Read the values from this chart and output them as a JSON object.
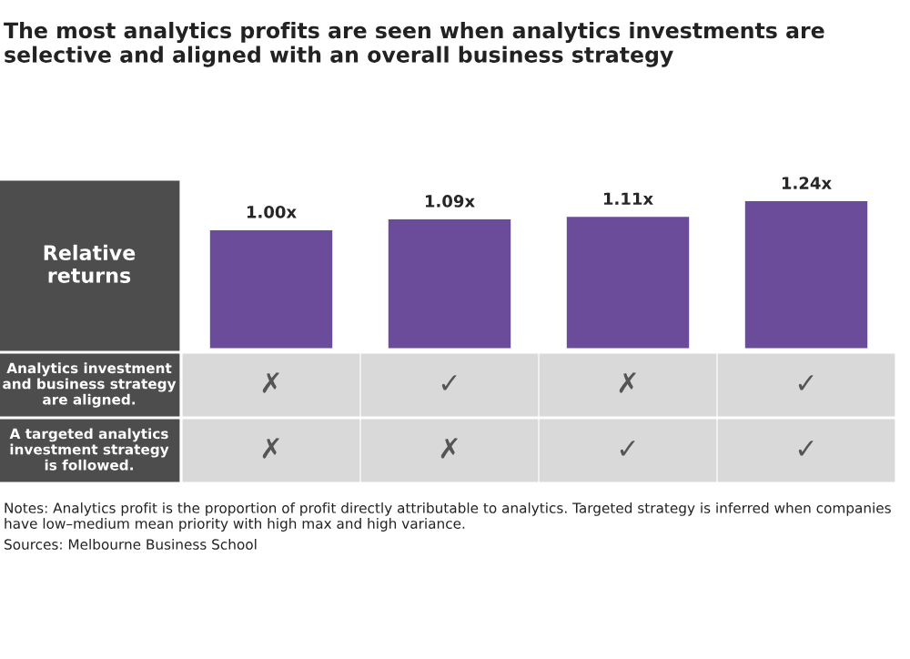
{
  "chart_data": {
    "type": "bar",
    "title": "The most analytics profits are seen when analytics investments are selective and aligned with an overall business strategy",
    "ylabel": "Relative returns",
    "categories": [
      null,
      null,
      null,
      null
    ],
    "values": [
      1.0,
      1.09,
      1.11,
      1.24
    ],
    "value_labels": [
      "1.00x",
      "1.09x",
      "1.11x",
      "1.24x"
    ],
    "color": "#6b4c9a",
    "annotations": [
      "Analytics investment and business strategy are aligned.",
      "✗",
      "✓",
      "✗",
      "✓",
      "A targeted analytics investment strategy is followed.",
      "✗",
      "✗",
      "✓",
      "✓",
      "Notes: Analytics profit is the proportion of profit directly attributable to analytics. Targeted strategy is inferred when companies have low–medium mean priority with high max and high variance.",
      "Sources: Melbourne Business School"
    ]
  }
}
